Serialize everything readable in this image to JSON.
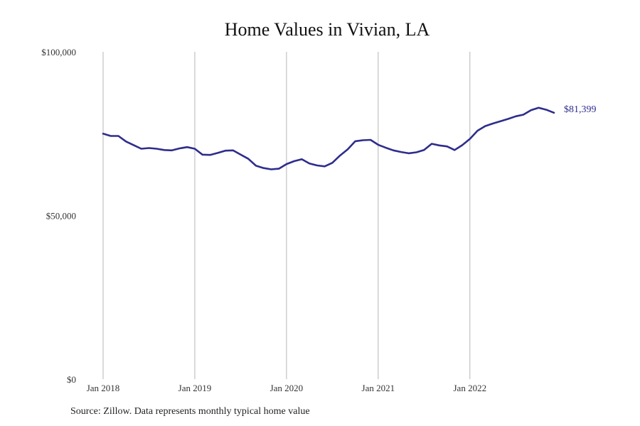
{
  "chart_data": {
    "type": "line",
    "title": "Home Values in Vivian, LA",
    "xlabel": "",
    "ylabel": "",
    "ylim": [
      0,
      100000
    ],
    "y_ticks": [
      {
        "value": 0,
        "label": "$0"
      },
      {
        "value": 50000,
        "label": "$50,000"
      },
      {
        "value": 100000,
        "label": "$100,000"
      }
    ],
    "x_ticks": [
      {
        "value": "2018-01",
        "label": "Jan 2018"
      },
      {
        "value": "2019-01",
        "label": "Jan 2019"
      },
      {
        "value": "2020-01",
        "label": "Jan 2020"
      },
      {
        "value": "2021-01",
        "label": "Jan 2021"
      },
      {
        "value": "2022-01",
        "label": "Jan 2022"
      }
    ],
    "vertical_grid": true,
    "line_color": "#2e2d8c",
    "series": [
      {
        "x": [
          "2018-01",
          "2018-02",
          "2018-03",
          "2018-04",
          "2018-05",
          "2018-06",
          "2018-07",
          "2018-08",
          "2018-09",
          "2018-10",
          "2018-11",
          "2018-12",
          "2019-01",
          "2019-02",
          "2019-03",
          "2019-04",
          "2019-05",
          "2019-06",
          "2019-07",
          "2019-08",
          "2019-09",
          "2019-10",
          "2019-11",
          "2019-12",
          "2020-01",
          "2020-02",
          "2020-03",
          "2020-04",
          "2020-05",
          "2020-06",
          "2020-07",
          "2020-08",
          "2020-09",
          "2020-10",
          "2020-11",
          "2020-12",
          "2021-01",
          "2021-02",
          "2021-03",
          "2021-04",
          "2021-05",
          "2021-06",
          "2021-07",
          "2021-08",
          "2021-09",
          "2021-10",
          "2021-11",
          "2021-12",
          "2022-01",
          "2022-02",
          "2022-03",
          "2022-04",
          "2022-05",
          "2022-06",
          "2022-07",
          "2022-08",
          "2022-09",
          "2022-10",
          "2022-11",
          "2022-12"
        ],
        "values": [
          75000,
          74300,
          74300,
          72600,
          71500,
          70400,
          70600,
          70400,
          70000,
          69900,
          70500,
          70900,
          70400,
          68600,
          68500,
          69100,
          69800,
          69900,
          68600,
          67300,
          65200,
          64500,
          64100,
          64300,
          65700,
          66600,
          67200,
          65900,
          65300,
          65000,
          66100,
          68300,
          70200,
          72700,
          73000,
          73100,
          71600,
          70700,
          69900,
          69400,
          69000,
          69300,
          70000,
          71900,
          71400,
          71100,
          70000,
          71500,
          73400,
          75900,
          77300,
          78100,
          78800,
          79500,
          80300,
          80800,
          82200,
          82900,
          82300,
          81399
        ]
      }
    ],
    "end_label": "$81,399"
  },
  "source_note": "Source: Zillow. Data represents monthly typical home value"
}
